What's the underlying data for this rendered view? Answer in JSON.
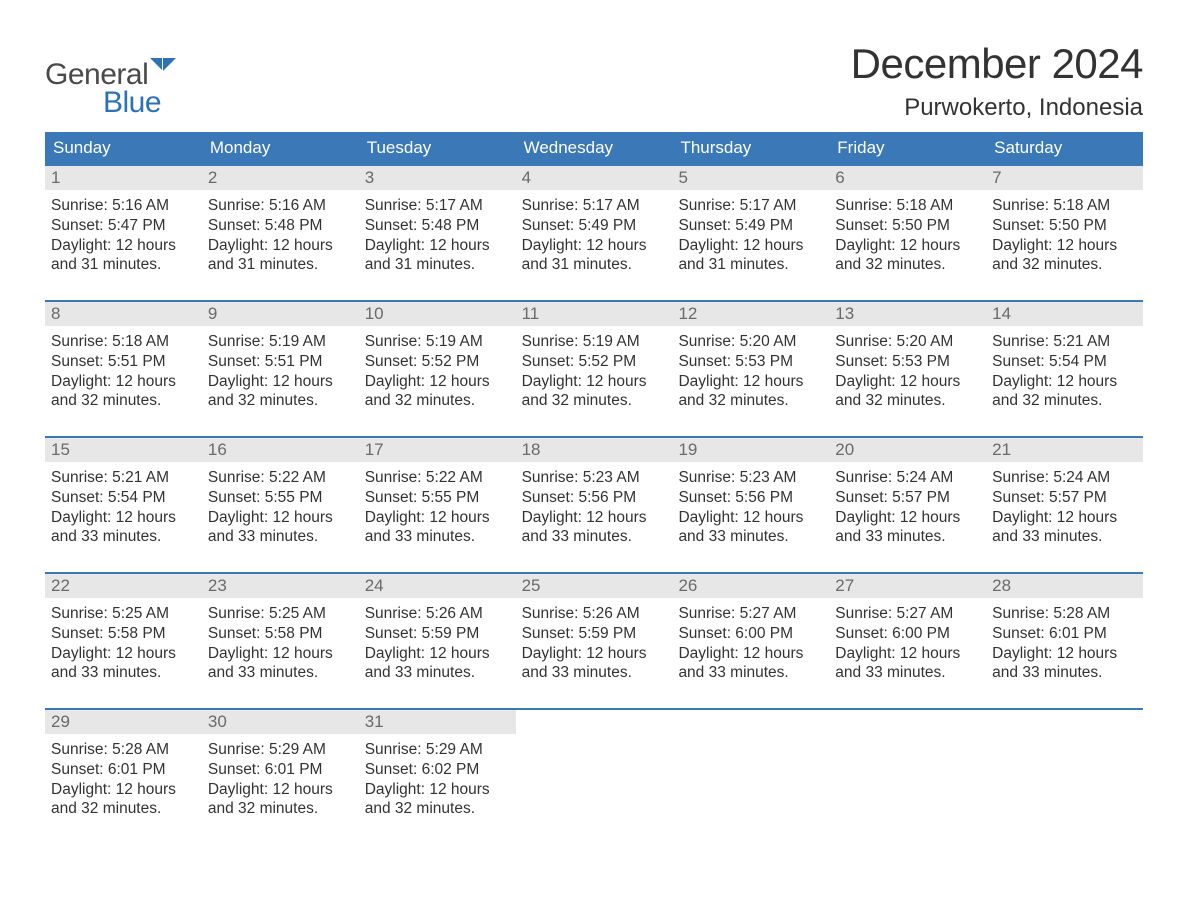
{
  "logo": {
    "general": "General",
    "blue": "Blue"
  },
  "title": "December 2024",
  "location": "Purwokerto, Indonesia",
  "dayHeaders": [
    "Sunday",
    "Monday",
    "Tuesday",
    "Wednesday",
    "Thursday",
    "Friday",
    "Saturday"
  ],
  "colors": {
    "headerBg": "#3a78b8",
    "headerText": "#ffffff",
    "dayNumBg": "#e7e7e7",
    "dayNumText": "#6a6a6a",
    "rowBorder": "#3a78b8",
    "bodyText": "#333333",
    "logoBlue": "#2b72b9",
    "logoGray": "#4a4a4a",
    "pageBg": "#ffffff"
  },
  "typography": {
    "bodyFont": "Arial, Helvetica, sans-serif",
    "monthTitleSize": 42,
    "locationSize": 24,
    "dayHeaderSize": 17,
    "dayNumSize": 17,
    "dayInfoSize": 15.5
  },
  "labels": {
    "sunrise": "Sunrise:",
    "sunset": "Sunset:",
    "daylight": "Daylight:"
  },
  "weeks": [
    [
      {
        "n": "1",
        "sunrise": "5:16 AM",
        "sunset": "5:47 PM",
        "daylight": "12 hours and 31 minutes."
      },
      {
        "n": "2",
        "sunrise": "5:16 AM",
        "sunset": "5:48 PM",
        "daylight": "12 hours and 31 minutes."
      },
      {
        "n": "3",
        "sunrise": "5:17 AM",
        "sunset": "5:48 PM",
        "daylight": "12 hours and 31 minutes."
      },
      {
        "n": "4",
        "sunrise": "5:17 AM",
        "sunset": "5:49 PM",
        "daylight": "12 hours and 31 minutes."
      },
      {
        "n": "5",
        "sunrise": "5:17 AM",
        "sunset": "5:49 PM",
        "daylight": "12 hours and 31 minutes."
      },
      {
        "n": "6",
        "sunrise": "5:18 AM",
        "sunset": "5:50 PM",
        "daylight": "12 hours and 32 minutes."
      },
      {
        "n": "7",
        "sunrise": "5:18 AM",
        "sunset": "5:50 PM",
        "daylight": "12 hours and 32 minutes."
      }
    ],
    [
      {
        "n": "8",
        "sunrise": "5:18 AM",
        "sunset": "5:51 PM",
        "daylight": "12 hours and 32 minutes."
      },
      {
        "n": "9",
        "sunrise": "5:19 AM",
        "sunset": "5:51 PM",
        "daylight": "12 hours and 32 minutes."
      },
      {
        "n": "10",
        "sunrise": "5:19 AM",
        "sunset": "5:52 PM",
        "daylight": "12 hours and 32 minutes."
      },
      {
        "n": "11",
        "sunrise": "5:19 AM",
        "sunset": "5:52 PM",
        "daylight": "12 hours and 32 minutes."
      },
      {
        "n": "12",
        "sunrise": "5:20 AM",
        "sunset": "5:53 PM",
        "daylight": "12 hours and 32 minutes."
      },
      {
        "n": "13",
        "sunrise": "5:20 AM",
        "sunset": "5:53 PM",
        "daylight": "12 hours and 32 minutes."
      },
      {
        "n": "14",
        "sunrise": "5:21 AM",
        "sunset": "5:54 PM",
        "daylight": "12 hours and 32 minutes."
      }
    ],
    [
      {
        "n": "15",
        "sunrise": "5:21 AM",
        "sunset": "5:54 PM",
        "daylight": "12 hours and 33 minutes."
      },
      {
        "n": "16",
        "sunrise": "5:22 AM",
        "sunset": "5:55 PM",
        "daylight": "12 hours and 33 minutes."
      },
      {
        "n": "17",
        "sunrise": "5:22 AM",
        "sunset": "5:55 PM",
        "daylight": "12 hours and 33 minutes."
      },
      {
        "n": "18",
        "sunrise": "5:23 AM",
        "sunset": "5:56 PM",
        "daylight": "12 hours and 33 minutes."
      },
      {
        "n": "19",
        "sunrise": "5:23 AM",
        "sunset": "5:56 PM",
        "daylight": "12 hours and 33 minutes."
      },
      {
        "n": "20",
        "sunrise": "5:24 AM",
        "sunset": "5:57 PM",
        "daylight": "12 hours and 33 minutes."
      },
      {
        "n": "21",
        "sunrise": "5:24 AM",
        "sunset": "5:57 PM",
        "daylight": "12 hours and 33 minutes."
      }
    ],
    [
      {
        "n": "22",
        "sunrise": "5:25 AM",
        "sunset": "5:58 PM",
        "daylight": "12 hours and 33 minutes."
      },
      {
        "n": "23",
        "sunrise": "5:25 AM",
        "sunset": "5:58 PM",
        "daylight": "12 hours and 33 minutes."
      },
      {
        "n": "24",
        "sunrise": "5:26 AM",
        "sunset": "5:59 PM",
        "daylight": "12 hours and 33 minutes."
      },
      {
        "n": "25",
        "sunrise": "5:26 AM",
        "sunset": "5:59 PM",
        "daylight": "12 hours and 33 minutes."
      },
      {
        "n": "26",
        "sunrise": "5:27 AM",
        "sunset": "6:00 PM",
        "daylight": "12 hours and 33 minutes."
      },
      {
        "n": "27",
        "sunrise": "5:27 AM",
        "sunset": "6:00 PM",
        "daylight": "12 hours and 33 minutes."
      },
      {
        "n": "28",
        "sunrise": "5:28 AM",
        "sunset": "6:01 PM",
        "daylight": "12 hours and 33 minutes."
      }
    ],
    [
      {
        "n": "29",
        "sunrise": "5:28 AM",
        "sunset": "6:01 PM",
        "daylight": "12 hours and 32 minutes."
      },
      {
        "n": "30",
        "sunrise": "5:29 AM",
        "sunset": "6:01 PM",
        "daylight": "12 hours and 32 minutes."
      },
      {
        "n": "31",
        "sunrise": "5:29 AM",
        "sunset": "6:02 PM",
        "daylight": "12 hours and 32 minutes."
      },
      null,
      null,
      null,
      null
    ]
  ]
}
